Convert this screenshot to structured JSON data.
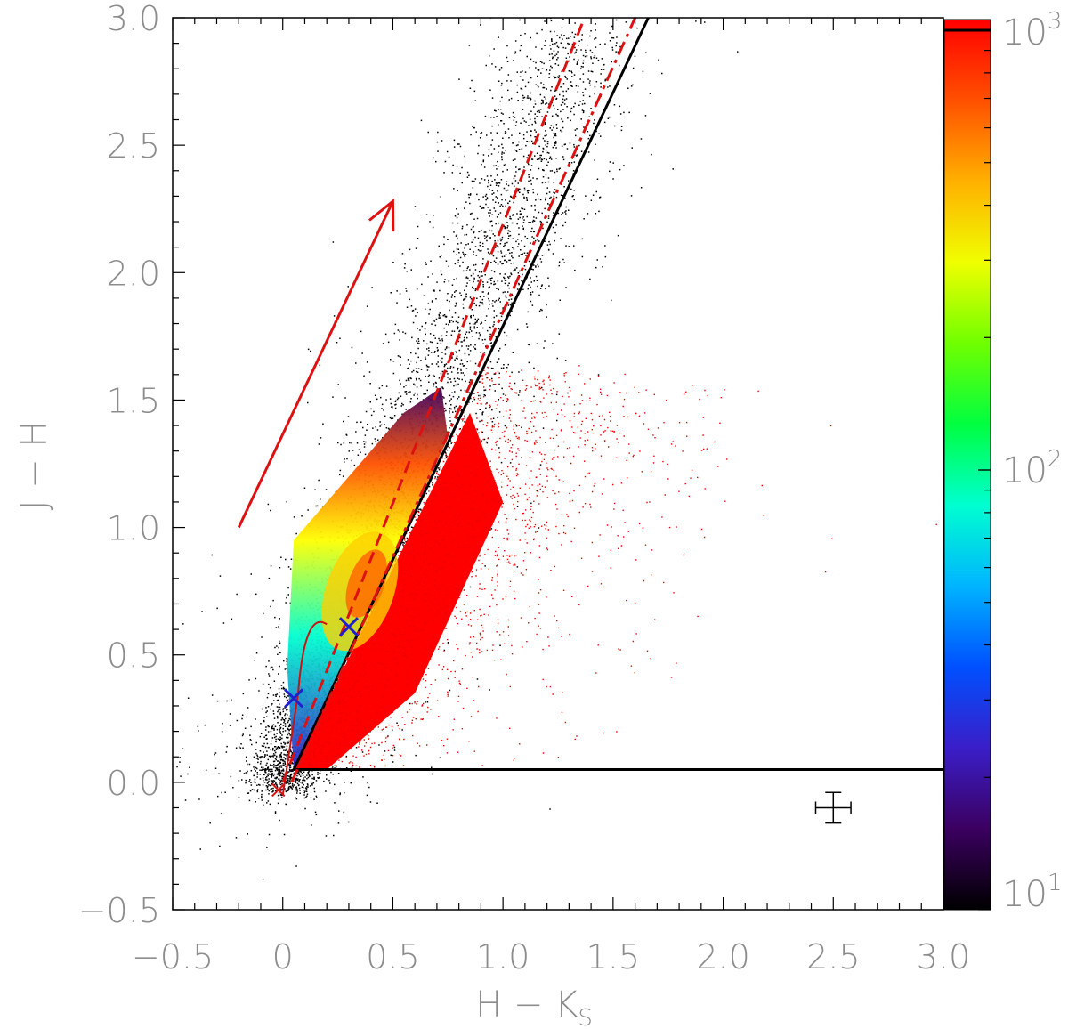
{
  "chart_data": {
    "type": "scatter",
    "xlabel": "H − K",
    "xlabel_subscript": "S",
    "ylabel": "J − H",
    "xlim": [
      -0.5,
      3.0
    ],
    "ylim": [
      -0.5,
      3.0
    ],
    "x_ticks": [
      "−0.5",
      "0",
      "0.5",
      "1.0",
      "1.5",
      "2.0",
      "2.5",
      "3.0"
    ],
    "y_ticks": [
      "−0.5",
      "0.0",
      "0.5",
      "1.0",
      "1.5",
      "2.0",
      "2.5",
      "3.0"
    ],
    "colorbar": {
      "scale": "log",
      "range": [
        10,
        1000
      ],
      "ticks": [
        {
          "value": 10,
          "label_base": "10",
          "label_exp": "1"
        },
        {
          "value": 100,
          "label_base": "10",
          "label_exp": "2"
        },
        {
          "value": 1000,
          "label_base": "10",
          "label_exp": "3"
        }
      ],
      "colors": [
        "#000000",
        "#3b0060",
        "#3a1ec8",
        "#0050ff",
        "#00b4ff",
        "#00ffd0",
        "#00ff40",
        "#70ff00",
        "#f0ff00",
        "#ffb000",
        "#ff5000",
        "#ff0000"
      ]
    },
    "lines": [
      {
        "name": "main-boundary",
        "style": "solid",
        "color": "#000000",
        "x": [
          0.05,
          1.66
        ],
        "y": [
          0.05,
          3.0
        ]
      },
      {
        "name": "horizontal-boundary",
        "style": "solid",
        "color": "#000000",
        "x": [
          0.05,
          3.0
        ],
        "y": [
          0.05,
          0.05
        ]
      },
      {
        "name": "dashed-line",
        "style": "dashed",
        "color": "#dd1111",
        "x": [
          0.0,
          1.37
        ],
        "y": [
          0.0,
          3.0
        ]
      },
      {
        "name": "dash-dot-line",
        "style": "dashdot",
        "color": "#dd1111",
        "x": [
          0.04,
          1.6
        ],
        "y": [
          0.0,
          3.0
        ]
      },
      {
        "name": "reddening-vector",
        "style": "arrow",
        "color": "#dd1111",
        "x": [
          -0.2,
          0.5
        ],
        "y": [
          1.0,
          2.28
        ]
      }
    ],
    "markers": [
      {
        "name": "blue-cross-1",
        "x": 0.05,
        "y": 0.33,
        "color": "#2020cc"
      },
      {
        "name": "blue-cross-2",
        "x": 0.3,
        "y": 0.61,
        "color": "#2020cc"
      }
    ],
    "error_bar": {
      "x": 2.5,
      "y": -0.1,
      "xerr": 0.08,
      "yerr": 0.06
    },
    "series": [
      {
        "color": "#000000",
        "distribution": "stellar locus along reddening band"
      },
      {
        "color": "#ff0000",
        "distribution": "sources redward of boundary line"
      }
    ]
  }
}
